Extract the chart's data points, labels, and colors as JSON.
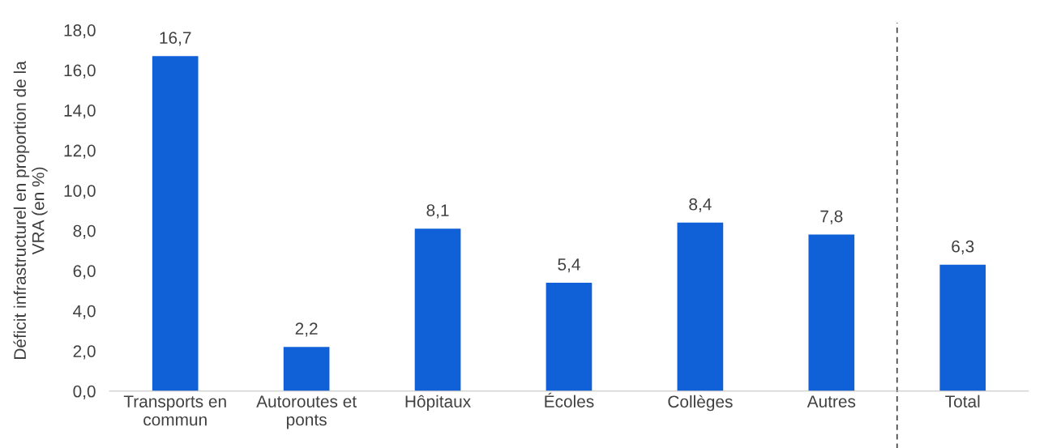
{
  "chart_data": {
    "type": "bar",
    "ylabel": "Déficit infrastructurel en proportion de la\nVRA (en %)",
    "categories": [
      "Transports en\ncommun",
      "Autoroutes et\nponts",
      "Hôpitaux",
      "Écoles",
      "Collèges",
      "Autres",
      "Total"
    ],
    "values": [
      16.7,
      2.2,
      8.1,
      5.4,
      8.4,
      7.8,
      6.3
    ],
    "value_labels": [
      "16,7",
      "2,2",
      "8,1",
      "5,4",
      "8,4",
      "7,8",
      "6,3"
    ],
    "color": "#1060d8",
    "ylim": [
      0,
      18
    ],
    "yticks": [
      {
        "value": 0,
        "label": "0,0"
      },
      {
        "value": 2,
        "label": "2,0"
      },
      {
        "value": 4,
        "label": "4,0"
      },
      {
        "value": 6,
        "label": "6,0"
      },
      {
        "value": 8,
        "label": "8,0"
      },
      {
        "value": 10,
        "label": "10,0"
      },
      {
        "value": 12,
        "label": "12,0"
      },
      {
        "value": 14,
        "label": "14,0"
      },
      {
        "value": 16,
        "label": "16,0"
      },
      {
        "value": 18,
        "label": "18,0"
      }
    ],
    "grid": false
  }
}
